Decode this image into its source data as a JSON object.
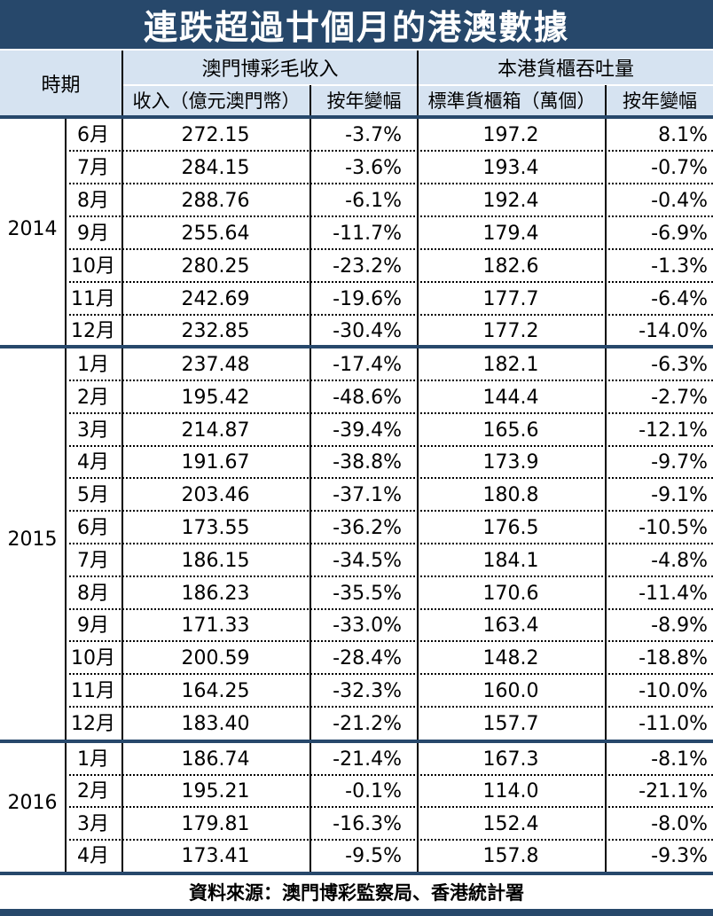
{
  "title": "連跌超過廿個月的港澳數據",
  "header": {
    "period": "時期",
    "group1": "澳門博彩毛收入",
    "group2": "本港貨櫃吞吐量",
    "col_revenue": "收入（億元澳門幣）",
    "col_yoy1": "按年變幅",
    "col_teu": "標準貨櫃箱（萬個）",
    "col_yoy2": "按年變幅"
  },
  "years": [
    "2014",
    "2015",
    "2016"
  ],
  "rows": [
    {
      "month": "6月",
      "revenue": "272.15",
      "yoy1": "-3.7%",
      "teu": "197.2",
      "yoy2": "8.1%"
    },
    {
      "month": "7月",
      "revenue": "284.15",
      "yoy1": "-3.6%",
      "teu": "193.4",
      "yoy2": "-0.7%"
    },
    {
      "month": "8月",
      "revenue": "288.76",
      "yoy1": "-6.1%",
      "teu": "192.4",
      "yoy2": "-0.4%"
    },
    {
      "month": "9月",
      "revenue": "255.64",
      "yoy1": "-11.7%",
      "teu": "179.4",
      "yoy2": "-6.9%"
    },
    {
      "month": "10月",
      "revenue": "280.25",
      "yoy1": "-23.2%",
      "teu": "182.6",
      "yoy2": "-1.3%"
    },
    {
      "month": "11月",
      "revenue": "242.69",
      "yoy1": "-19.6%",
      "teu": "177.7",
      "yoy2": "-6.4%"
    },
    {
      "month": "12月",
      "revenue": "232.85",
      "yoy1": "-30.4%",
      "teu": "177.2",
      "yoy2": "-14.0%"
    },
    {
      "month": "1月",
      "revenue": "237.48",
      "yoy1": "-17.4%",
      "teu": "182.1",
      "yoy2": "-6.3%"
    },
    {
      "month": "2月",
      "revenue": "195.42",
      "yoy1": "-48.6%",
      "teu": "144.4",
      "yoy2": "-2.7%"
    },
    {
      "month": "3月",
      "revenue": "214.87",
      "yoy1": "-39.4%",
      "teu": "165.6",
      "yoy2": "-12.1%"
    },
    {
      "month": "4月",
      "revenue": "191.67",
      "yoy1": "-38.8%",
      "teu": "173.9",
      "yoy2": "-9.7%"
    },
    {
      "month": "5月",
      "revenue": "203.46",
      "yoy1": "-37.1%",
      "teu": "180.8",
      "yoy2": "-9.1%"
    },
    {
      "month": "6月",
      "revenue": "173.55",
      "yoy1": "-36.2%",
      "teu": "176.5",
      "yoy2": "-10.5%"
    },
    {
      "month": "7月",
      "revenue": "186.15",
      "yoy1": "-34.5%",
      "teu": "184.1",
      "yoy2": "-4.8%"
    },
    {
      "month": "8月",
      "revenue": "186.23",
      "yoy1": "-35.5%",
      "teu": "170.6",
      "yoy2": "-11.4%"
    },
    {
      "month": "9月",
      "revenue": "171.33",
      "yoy1": "-33.0%",
      "teu": "163.4",
      "yoy2": "-8.9%"
    },
    {
      "month": "10月",
      "revenue": "200.59",
      "yoy1": "-28.4%",
      "teu": "148.2",
      "yoy2": "-18.8%"
    },
    {
      "month": "11月",
      "revenue": "164.25",
      "yoy1": "-32.3%",
      "teu": "160.0",
      "yoy2": "-10.0%"
    },
    {
      "month": "12月",
      "revenue": "183.40",
      "yoy1": "-21.2%",
      "teu": "157.7",
      "yoy2": "-11.0%"
    },
    {
      "month": "1月",
      "revenue": "186.74",
      "yoy1": "-21.4%",
      "teu": "167.3",
      "yoy2": "-8.1%"
    },
    {
      "month": "2月",
      "revenue": "195.21",
      "yoy1": "-0.1%",
      "teu": "114.0",
      "yoy2": "-21.1%"
    },
    {
      "month": "3月",
      "revenue": "179.81",
      "yoy1": "-16.3%",
      "teu": "152.4",
      "yoy2": "-8.0%"
    },
    {
      "month": "4月",
      "revenue": "173.41",
      "yoy1": "-9.5%",
      "teu": "157.8",
      "yoy2": "-9.3%"
    }
  ],
  "source": "資料來源：澳門博彩監察局、香港統計署"
}
